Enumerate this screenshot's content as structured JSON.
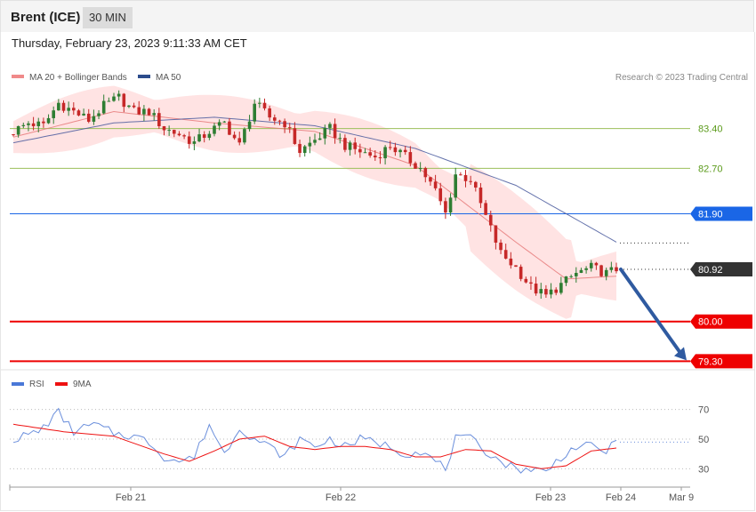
{
  "header": {
    "instrument": "Brent (ICE)",
    "interval": "30 MIN"
  },
  "timestamp": "Thursday, February 23, 2023 9:11:33 AM CET",
  "legend": {
    "ma20": "MA 20 + Bollinger Bands",
    "ma50": "MA 50",
    "rsi": "RSI",
    "ma9": "9MA"
  },
  "credit": "Research © 2023 Trading Central",
  "colors": {
    "bullish": "#2e7d32",
    "bearish": "#c62828",
    "band": "#ffd9d9",
    "ma20": "#e57373",
    "ma50": "#4a5a9e",
    "support": "#ee0000",
    "pivot": "#1a66e6",
    "resistance": "#9cbf5a",
    "arrow": "#2f5aa0",
    "rsi": "#6b8fdc",
    "rsi_ma": "#ee1111",
    "current": "#333333"
  },
  "chart_data": [
    {
      "type": "candlestick",
      "title": "",
      "y_range": [
        79.15,
        84.1
      ],
      "x_labels": [
        "Feb 21",
        "Feb 22",
        "Feb 23",
        "Feb 24",
        "Mar 9"
      ],
      "levels": [
        {
          "value": 83.4,
          "label": "83.40",
          "kind": "resistance"
        },
        {
          "value": 82.7,
          "label": "82.70",
          "kind": "resistance"
        },
        {
          "value": 81.9,
          "label": "81.90",
          "kind": "pivot"
        },
        {
          "value": 80.92,
          "label": "80.92",
          "kind": "current"
        },
        {
          "value": 80.0,
          "label": "80.00",
          "kind": "support"
        },
        {
          "value": 79.3,
          "label": "79.30",
          "kind": "support"
        }
      ],
      "arrow": {
        "from": 80.92,
        "to": 79.3
      },
      "close_anchors": [
        [
          0,
          83.35
        ],
        [
          3,
          83.5
        ],
        [
          6,
          83.45
        ],
        [
          9,
          83.85
        ],
        [
          12,
          83.7
        ],
        [
          15,
          83.55
        ],
        [
          18,
          83.8
        ],
        [
          21,
          83.95
        ],
        [
          24,
          83.7
        ],
        [
          27,
          83.7
        ],
        [
          30,
          83.4
        ],
        [
          33,
          83.3
        ],
        [
          36,
          83.15
        ],
        [
          39,
          83.35
        ],
        [
          42,
          83.5
        ],
        [
          45,
          83.1
        ],
        [
          48,
          83.85
        ],
        [
          51,
          83.6
        ],
        [
          54,
          83.5
        ],
        [
          57,
          83.0
        ],
        [
          60,
          83.2
        ],
        [
          63,
          83.4
        ],
        [
          66,
          83.1
        ],
        [
          69,
          83.0
        ],
        [
          72,
          82.9
        ],
        [
          75,
          83.1
        ],
        [
          78,
          82.9
        ],
        [
          81,
          82.7
        ],
        [
          84,
          82.3
        ],
        [
          86,
          81.9
        ],
        [
          88,
          82.6
        ],
        [
          91,
          82.5
        ],
        [
          94,
          81.85
        ],
        [
          97,
          81.2
        ],
        [
          100,
          80.95
        ],
        [
          103,
          80.6
        ],
        [
          106,
          80.45
        ],
        [
          109,
          80.65
        ],
        [
          112,
          80.85
        ],
        [
          115,
          80.95
        ],
        [
          118,
          80.85
        ],
        [
          120,
          80.92
        ]
      ],
      "ma20_anchors": [
        [
          0,
          83.25
        ],
        [
          20,
          83.7
        ],
        [
          40,
          83.5
        ],
        [
          60,
          83.35
        ],
        [
          80,
          82.75
        ],
        [
          100,
          81.4
        ],
        [
          110,
          80.75
        ],
        [
          120,
          80.8
        ]
      ],
      "ma50_anchors": [
        [
          0,
          83.15
        ],
        [
          20,
          83.5
        ],
        [
          40,
          83.6
        ],
        [
          60,
          83.45
        ],
        [
          80,
          83.05
        ],
        [
          100,
          82.4
        ],
        [
          110,
          81.9
        ],
        [
          120,
          81.4
        ]
      ]
    },
    {
      "type": "line",
      "title": "",
      "y_range": [
        20,
        80
      ],
      "y_ticks": [
        30,
        50,
        70
      ],
      "series": [
        {
          "name": "RSI",
          "anchors": [
            [
              0,
              50
            ],
            [
              5,
              55
            ],
            [
              9,
              68
            ],
            [
              12,
              55
            ],
            [
              16,
              60
            ],
            [
              20,
              54
            ],
            [
              24,
              52
            ],
            [
              27,
              48
            ],
            [
              30,
              38
            ],
            [
              33,
              35
            ],
            [
              36,
              38
            ],
            [
              39,
              60
            ],
            [
              42,
              40
            ],
            [
              45,
              58
            ],
            [
              48,
              50
            ],
            [
              51,
              45
            ],
            [
              54,
              38
            ],
            [
              57,
              50
            ],
            [
              60,
              45
            ],
            [
              63,
              50
            ],
            [
              66,
              45
            ],
            [
              69,
              50
            ],
            [
              72,
              48
            ],
            [
              75,
              45
            ],
            [
              78,
              40
            ],
            [
              81,
              42
            ],
            [
              84,
              35
            ],
            [
              86,
              30
            ],
            [
              88,
              50
            ],
            [
              91,
              50
            ],
            [
              94,
              42
            ],
            [
              97,
              35
            ],
            [
              100,
              30
            ],
            [
              103,
              30
            ],
            [
              106,
              28
            ],
            [
              109,
              38
            ],
            [
              112,
              45
            ],
            [
              115,
              45
            ],
            [
              118,
              42
            ],
            [
              120,
              48
            ]
          ]
        },
        {
          "name": "9MA",
          "anchors": [
            [
              0,
              60
            ],
            [
              10,
              55
            ],
            [
              20,
              52
            ],
            [
              30,
              40
            ],
            [
              35,
              35
            ],
            [
              40,
              42
            ],
            [
              45,
              50
            ],
            [
              50,
              52
            ],
            [
              55,
              45
            ],
            [
              60,
              43
            ],
            [
              65,
              45
            ],
            [
              70,
              45
            ],
            [
              75,
              43
            ],
            [
              80,
              38
            ],
            [
              85,
              38
            ],
            [
              90,
              43
            ],
            [
              95,
              42
            ],
            [
              100,
              33
            ],
            [
              105,
              30
            ],
            [
              110,
              32
            ],
            [
              115,
              42
            ],
            [
              120,
              44
            ]
          ]
        }
      ]
    }
  ]
}
